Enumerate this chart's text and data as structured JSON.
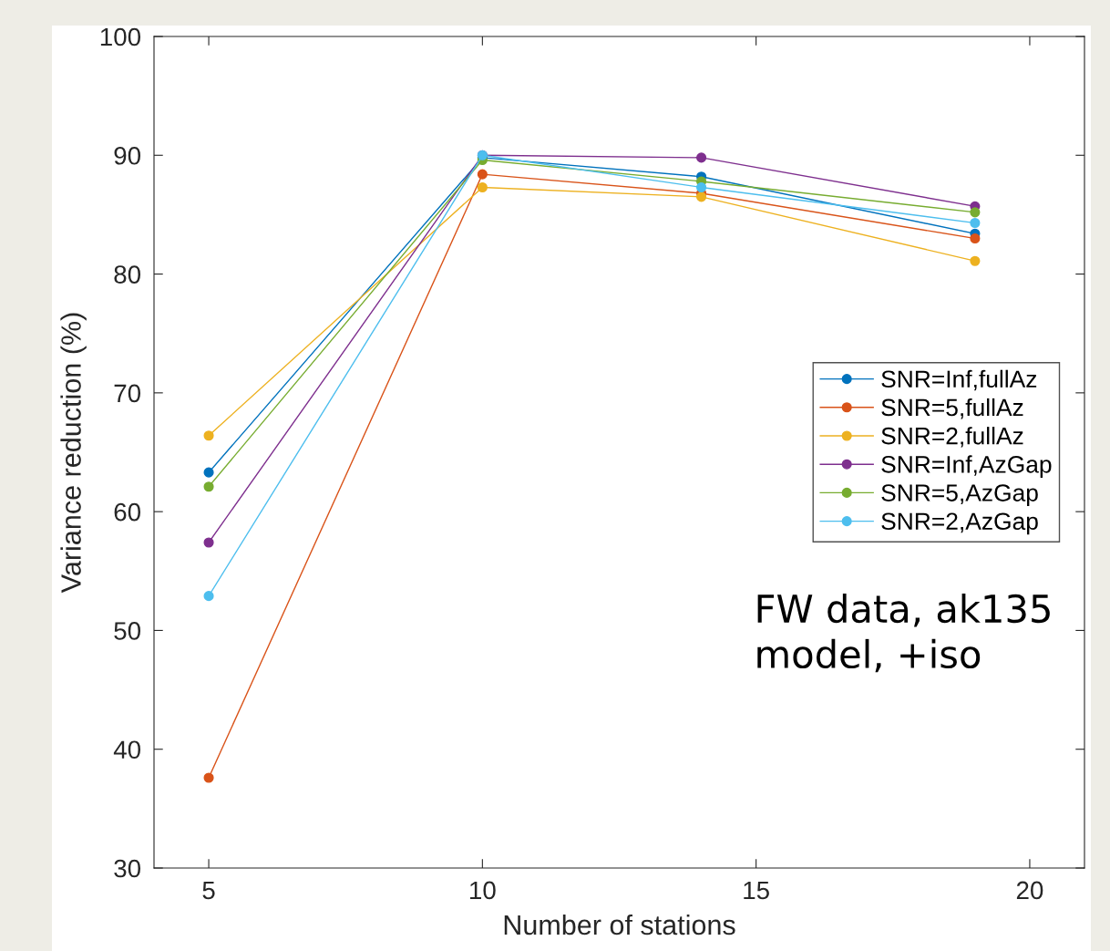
{
  "chart_data": {
    "type": "line",
    "xlabel": "Number of stations",
    "ylabel": "Variance reduction (%)",
    "x": [
      5,
      10,
      14,
      19
    ],
    "series": [
      {
        "name": "SNR=Inf,fullAz",
        "color": "#0072bd",
        "values": [
          63.3,
          89.8,
          88.2,
          83.4
        ]
      },
      {
        "name": "SNR=5,fullAz",
        "color": "#d95319",
        "values": [
          37.6,
          88.4,
          86.8,
          83.0
        ]
      },
      {
        "name": "SNR=2,fullAz",
        "color": "#edb120",
        "values": [
          66.4,
          87.3,
          86.5,
          81.1
        ]
      },
      {
        "name": "SNR=Inf,AzGap",
        "color": "#7e2f8e",
        "values": [
          57.4,
          90.0,
          89.8,
          85.7
        ]
      },
      {
        "name": "SNR=5,AzGap",
        "color": "#77ac30",
        "values": [
          62.1,
          89.6,
          87.8,
          85.2
        ]
      },
      {
        "name": "SNR=2,AzGap",
        "color": "#4dbeee",
        "values": [
          52.9,
          90.0,
          87.3,
          84.3
        ]
      }
    ],
    "xlim": [
      4,
      21
    ],
    "xticks": [
      5,
      10,
      15,
      20
    ],
    "ylim": [
      30,
      100
    ],
    "yticks": [
      30,
      40,
      50,
      60,
      70,
      80,
      90,
      100
    ],
    "annotations": [
      "FW data, ak135\nmodel, +iso"
    ],
    "legend": "right",
    "grid": false,
    "marker": "circle",
    "line_style": "solid"
  }
}
